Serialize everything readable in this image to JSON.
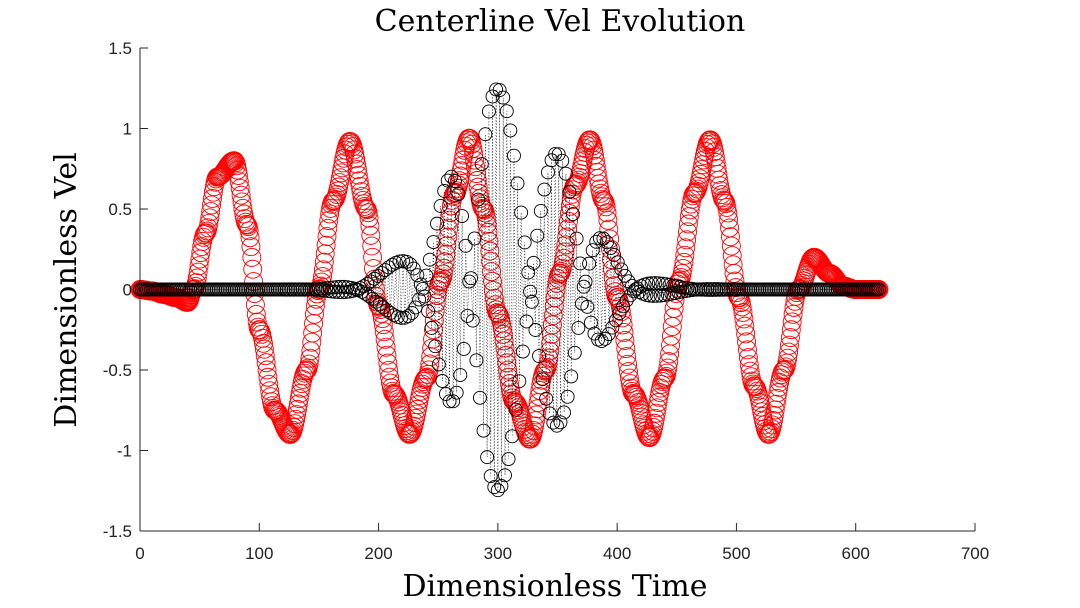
{
  "chart_data": {
    "type": "scatter",
    "title": "Centerline Vel Evolution",
    "xlabel": "Dimensionless Time",
    "ylabel": "Dimensionless Vel",
    "xlim": [
      0,
      700
    ],
    "ylim": [
      -1.5,
      1.5
    ],
    "xticks": [
      0,
      100,
      200,
      300,
      400,
      500,
      600,
      700
    ],
    "xtick_labels": [
      "0",
      "100",
      "200",
      "300",
      "400",
      "500",
      "600",
      "700"
    ],
    "yticks": [
      -1.5,
      -1,
      -0.5,
      0,
      0.5,
      1,
      1.5
    ],
    "ytick_labels": [
      "-1.5",
      "-1",
      "-0.5",
      "0",
      "0.5",
      "1",
      "1.5"
    ],
    "grid": false,
    "series": [
      {
        "color": "#ff0000",
        "marker": "open-circle",
        "x": [
          0,
          10,
          20,
          30,
          40,
          45,
          55,
          65,
          79,
          90,
          100,
          113,
          126,
          140,
          150,
          162,
          176,
          190,
          200,
          213,
          226,
          240,
          252,
          264,
          276,
          288,
          300,
          314,
          327,
          340,
          352,
          365,
          377,
          389,
          400,
          414,
          427,
          440,
          452,
          465,
          478,
          490,
          502,
          515,
          527,
          540,
          552,
          565,
          578,
          590,
          600,
          610,
          620
        ],
        "values": [
          0,
          -0.01,
          -0.03,
          -0.05,
          -0.08,
          0.0,
          0.35,
          0.7,
          0.8,
          0.4,
          -0.25,
          -0.75,
          -0.9,
          -0.5,
          0.0,
          0.55,
          0.92,
          0.5,
          -0.1,
          -0.65,
          -0.9,
          -0.55,
          0.05,
          0.6,
          0.94,
          0.5,
          -0.15,
          -0.7,
          -0.93,
          -0.5,
          0.1,
          0.65,
          0.93,
          0.55,
          -0.05,
          -0.65,
          -0.92,
          -0.55,
          0.05,
          0.6,
          0.93,
          0.55,
          -0.05,
          -0.6,
          -0.9,
          -0.5,
          0.0,
          0.2,
          0.1,
          0.02,
          0.0,
          0.0,
          0.0
        ]
      },
      {
        "color": "#000000",
        "marker": "open-circle",
        "connector": "dotted",
        "envelope_peak_t": 310,
        "envelope_peak_value": 1.32,
        "x_range": [
          0,
          620
        ],
        "point_spacing": 1.5,
        "oscillation_period": 3.1
      }
    ]
  }
}
